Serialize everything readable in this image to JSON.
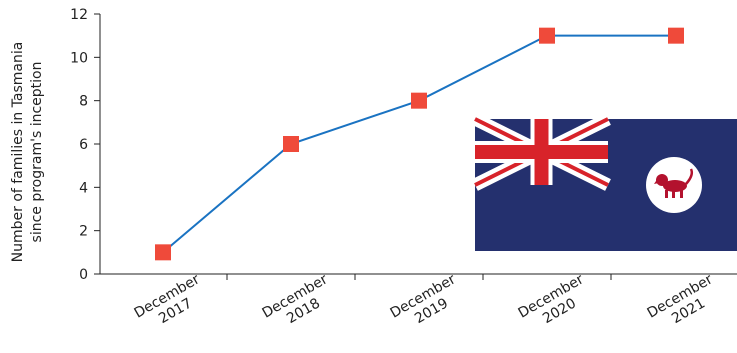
{
  "chart_data": {
    "type": "line",
    "categories": [
      [
        "December",
        "2017"
      ],
      [
        "December",
        "2018"
      ],
      [
        "December",
        "2019"
      ],
      [
        "December",
        "2020"
      ],
      [
        "December",
        "2021"
      ]
    ],
    "values": [
      1,
      6,
      8,
      11,
      11
    ],
    "ylabel": [
      "Number of families in Tasmania",
      "since program's inception"
    ],
    "ylim": [
      0,
      12
    ],
    "yticks": [
      0,
      2,
      4,
      6,
      8,
      10,
      12
    ],
    "grid": false,
    "colors": {
      "line": "#1a73c2",
      "marker": "#ef4a3a",
      "axis": "#222222"
    }
  },
  "flag": {
    "description_name": "Tasmania",
    "colors": {
      "field": "#24306e",
      "red": "#d8232a",
      "white": "#ffffff",
      "lion": "#b3122e"
    }
  }
}
